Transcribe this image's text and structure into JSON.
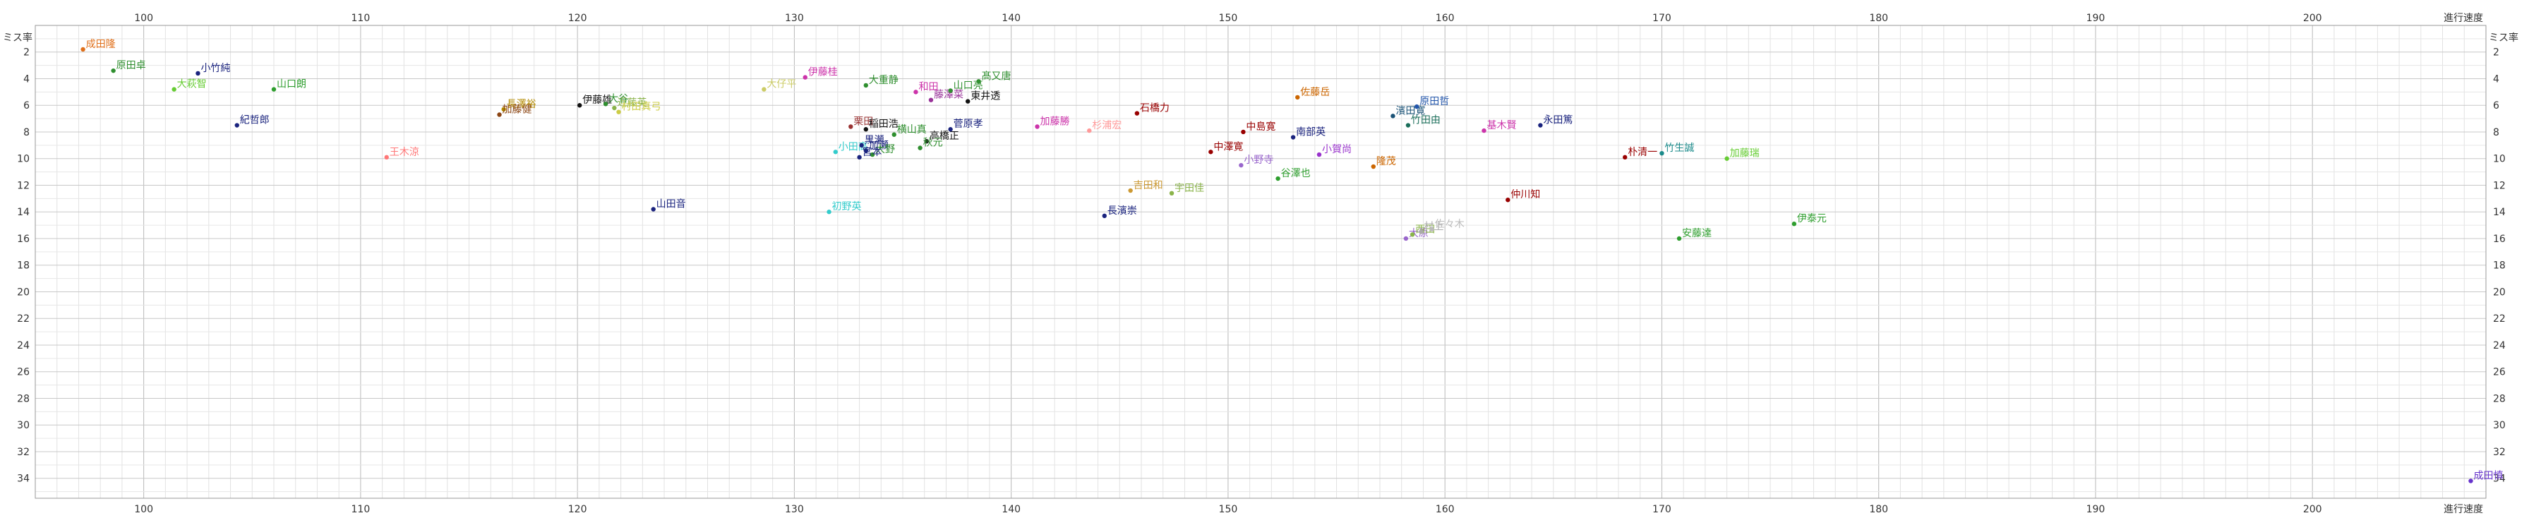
{
  "chart_data": {
    "type": "scatter",
    "title": "",
    "xlabel": "進行速度",
    "ylabel": "ミス率",
    "xlim": [
      95,
      208
    ],
    "ylim": [
      0,
      35.5
    ],
    "y_inverted": true,
    "grid": true,
    "x_ticks": [
      100,
      110,
      120,
      130,
      140,
      150,
      160,
      170,
      180,
      190,
      200
    ],
    "y_ticks": [
      2,
      4,
      6,
      8,
      10,
      12,
      14,
      16,
      18,
      20,
      22,
      24,
      26,
      28,
      30,
      32,
      34
    ],
    "points": [
      {
        "label": "成田隆",
        "x": 97.2,
        "y": 1.8,
        "color": "#e0701b"
      },
      {
        "label": "原田卓",
        "x": 98.6,
        "y": 3.4,
        "color": "#2f8f2f"
      },
      {
        "label": "小竹純",
        "x": 102.5,
        "y": 3.6,
        "color": "#1a237e"
      },
      {
        "label": "大萩智",
        "x": 101.4,
        "y": 4.8,
        "color": "#66cc33"
      },
      {
        "label": "山口朗",
        "x": 106.0,
        "y": 4.8,
        "color": "#2e9e2e"
      },
      {
        "label": "紀哲郎",
        "x": 104.3,
        "y": 7.5,
        "color": "#1a237e"
      },
      {
        "label": "王木涼",
        "x": 111.2,
        "y": 9.9,
        "color": "#ff7777"
      },
      {
        "label": "長澤裕",
        "x": 116.6,
        "y": 6.3,
        "color": "#b38a00"
      },
      {
        "label": "加藤健",
        "x": 116.4,
        "y": 6.7,
        "color": "#8b4513"
      },
      {
        "label": "伊藤雄",
        "x": 120.1,
        "y": 6.0,
        "color": "#111111"
      },
      {
        "label": "大谷",
        "x": 121.3,
        "y": 5.9,
        "color": "#2f8f2f"
      },
      {
        "label": "近藤英",
        "x": 121.7,
        "y": 6.2,
        "color": "#8ab34a"
      },
      {
        "label": "村田真弓",
        "x": 121.9,
        "y": 6.5,
        "color": "#cccc44"
      },
      {
        "label": "山田音",
        "x": 123.5,
        "y": 13.8,
        "color": "#1a237e"
      },
      {
        "label": "大仔平",
        "x": 128.6,
        "y": 4.8,
        "color": "#cccc66"
      },
      {
        "label": "伊藤桂",
        "x": 130.5,
        "y": 3.9,
        "color": "#cc33aa"
      },
      {
        "label": "大重静",
        "x": 133.3,
        "y": 4.5,
        "color": "#2f8f2f"
      },
      {
        "label": "初野英",
        "x": 131.6,
        "y": 14.0,
        "color": "#33cccc"
      },
      {
        "label": "小田高",
        "x": 131.9,
        "y": 9.5,
        "color": "#33cccc"
      },
      {
        "label": "栗田",
        "x": 132.6,
        "y": 7.6,
        "color": "#993333"
      },
      {
        "label": "稲田浩",
        "x": 133.3,
        "y": 7.8,
        "color": "#111111"
      },
      {
        "label": "黒瀬",
        "x": 133.1,
        "y": 9.0,
        "color": "#1a237e"
      },
      {
        "label": "加瀬",
        "x": 133.3,
        "y": 9.4,
        "color": "#1a237e"
      },
      {
        "label": "大野",
        "x": 133.6,
        "y": 9.7,
        "color": "#2f8f2f"
      },
      {
        "label": "宮本",
        "x": 133.0,
        "y": 9.9,
        "color": "#1a237e"
      },
      {
        "label": "横山真",
        "x": 134.6,
        "y": 8.2,
        "color": "#2f8f2f"
      },
      {
        "label": "高橋正",
        "x": 136.1,
        "y": 8.7,
        "color": "#111111"
      },
      {
        "label": "菅原孝",
        "x": 137.2,
        "y": 7.8,
        "color": "#1a237e"
      },
      {
        "label": "秋元",
        "x": 135.8,
        "y": 9.2,
        "color": "#2f8f2f"
      },
      {
        "label": "藤澤菜",
        "x": 136.3,
        "y": 5.6,
        "color": "#993399"
      },
      {
        "label": "和田",
        "x": 135.6,
        "y": 5.0,
        "color": "#cc33aa"
      },
      {
        "label": "山口亮",
        "x": 137.2,
        "y": 4.9,
        "color": "#2f8f2f"
      },
      {
        "label": "髙又唐",
        "x": 138.5,
        "y": 4.2,
        "color": "#2f8f2f"
      },
      {
        "label": "東井透",
        "x": 138.0,
        "y": 5.7,
        "color": "#111111"
      },
      {
        "label": "加藤勝",
        "x": 141.2,
        "y": 7.6,
        "color": "#cc33aa"
      },
      {
        "label": "杉浦宏",
        "x": 143.6,
        "y": 7.9,
        "color": "#ff9999"
      },
      {
        "label": "石橋力",
        "x": 145.8,
        "y": 6.6,
        "color": "#990000"
      },
      {
        "label": "長濱崇",
        "x": 144.3,
        "y": 14.3,
        "color": "#1a237e"
      },
      {
        "label": "吉田和",
        "x": 145.5,
        "y": 12.4,
        "color": "#cc9933"
      },
      {
        "label": "宇田佳",
        "x": 147.4,
        "y": 12.6,
        "color": "#8ab34a"
      },
      {
        "label": "中澤寛",
        "x": 149.2,
        "y": 9.5,
        "color": "#990000"
      },
      {
        "label": "中島寛",
        "x": 150.7,
        "y": 8.0,
        "color": "#990000"
      },
      {
        "label": "小野寺",
        "x": 150.6,
        "y": 10.5,
        "color": "#9966cc"
      },
      {
        "label": "南部英",
        "x": 153.0,
        "y": 8.4,
        "color": "#1a237e"
      },
      {
        "label": "佐藤岳",
        "x": 153.2,
        "y": 5.4,
        "color": "#cc6600"
      },
      {
        "label": "小賀尚",
        "x": 154.2,
        "y": 9.7,
        "color": "#9933cc"
      },
      {
        "label": "谷澤也",
        "x": 152.3,
        "y": 11.5,
        "color": "#2e9e2e"
      },
      {
        "label": "隆茂",
        "x": 156.7,
        "y": 10.6,
        "color": "#cc6600"
      },
      {
        "label": "濱田寛",
        "x": 157.6,
        "y": 6.8,
        "color": "#1a5276"
      },
      {
        "label": "原田哲",
        "x": 158.7,
        "y": 6.1,
        "color": "#2255aa"
      },
      {
        "label": "竹田由",
        "x": 158.3,
        "y": 7.5,
        "color": "#1a6e5a"
      },
      {
        "label": "大原",
        "x": 158.2,
        "y": 16.0,
        "color": "#9966cc"
      },
      {
        "label": "西田",
        "x": 158.5,
        "y": 15.7,
        "color": "#8ab34a"
      },
      {
        "label": "村上",
        "x": 158.9,
        "y": 15.5,
        "color": "#aaaaaa"
      },
      {
        "label": "佐々木",
        "x": 159.4,
        "y": 15.3,
        "color": "#bbbbbb"
      },
      {
        "label": "基木賢",
        "x": 161.8,
        "y": 7.9,
        "color": "#cc33aa"
      },
      {
        "label": "永田篤",
        "x": 164.4,
        "y": 7.5,
        "color": "#1a237e"
      },
      {
        "label": "仲川知",
        "x": 162.9,
        "y": 13.1,
        "color": "#990000"
      },
      {
        "label": "朴清一",
        "x": 168.3,
        "y": 9.9,
        "color": "#990000"
      },
      {
        "label": "竹生誠",
        "x": 170.0,
        "y": 9.6,
        "color": "#1a8a8a"
      },
      {
        "label": "加藤瑞",
        "x": 173.0,
        "y": 10.0,
        "color": "#66cc33"
      },
      {
        "label": "安藤達",
        "x": 170.8,
        "y": 16.0,
        "color": "#2e9e2e"
      },
      {
        "label": "伊泰元",
        "x": 176.1,
        "y": 14.9,
        "color": "#2e9e2e"
      },
      {
        "label": "成田慎",
        "x": 207.3,
        "y": 34.2,
        "color": "#6633cc"
      }
    ]
  }
}
